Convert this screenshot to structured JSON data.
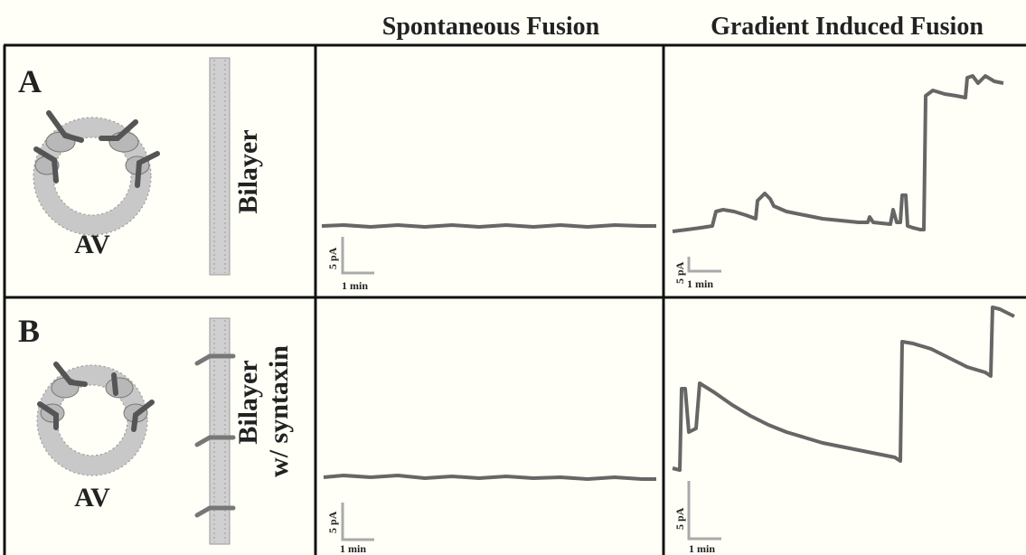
{
  "headers": {
    "spontaneous": "Spontaneous Fusion",
    "gradient": "Gradient Induced Fusion"
  },
  "rows": [
    {
      "letter": "A",
      "vesicle_label": "AV",
      "membrane_label_line1": "Bilayer",
      "membrane_label_line2": ""
    },
    {
      "letter": "B",
      "vesicle_label": "AV",
      "membrane_label_line1": "Bilayer",
      "membrane_label_line2": "w/ syntaxin"
    }
  ],
  "scalebars": {
    "current": "5 pA",
    "time": "1 min"
  },
  "colors": {
    "trace": "#666666",
    "scalebar": "#aaaaaa",
    "lipid": "#c8c8c8",
    "protein": "#555555"
  }
}
